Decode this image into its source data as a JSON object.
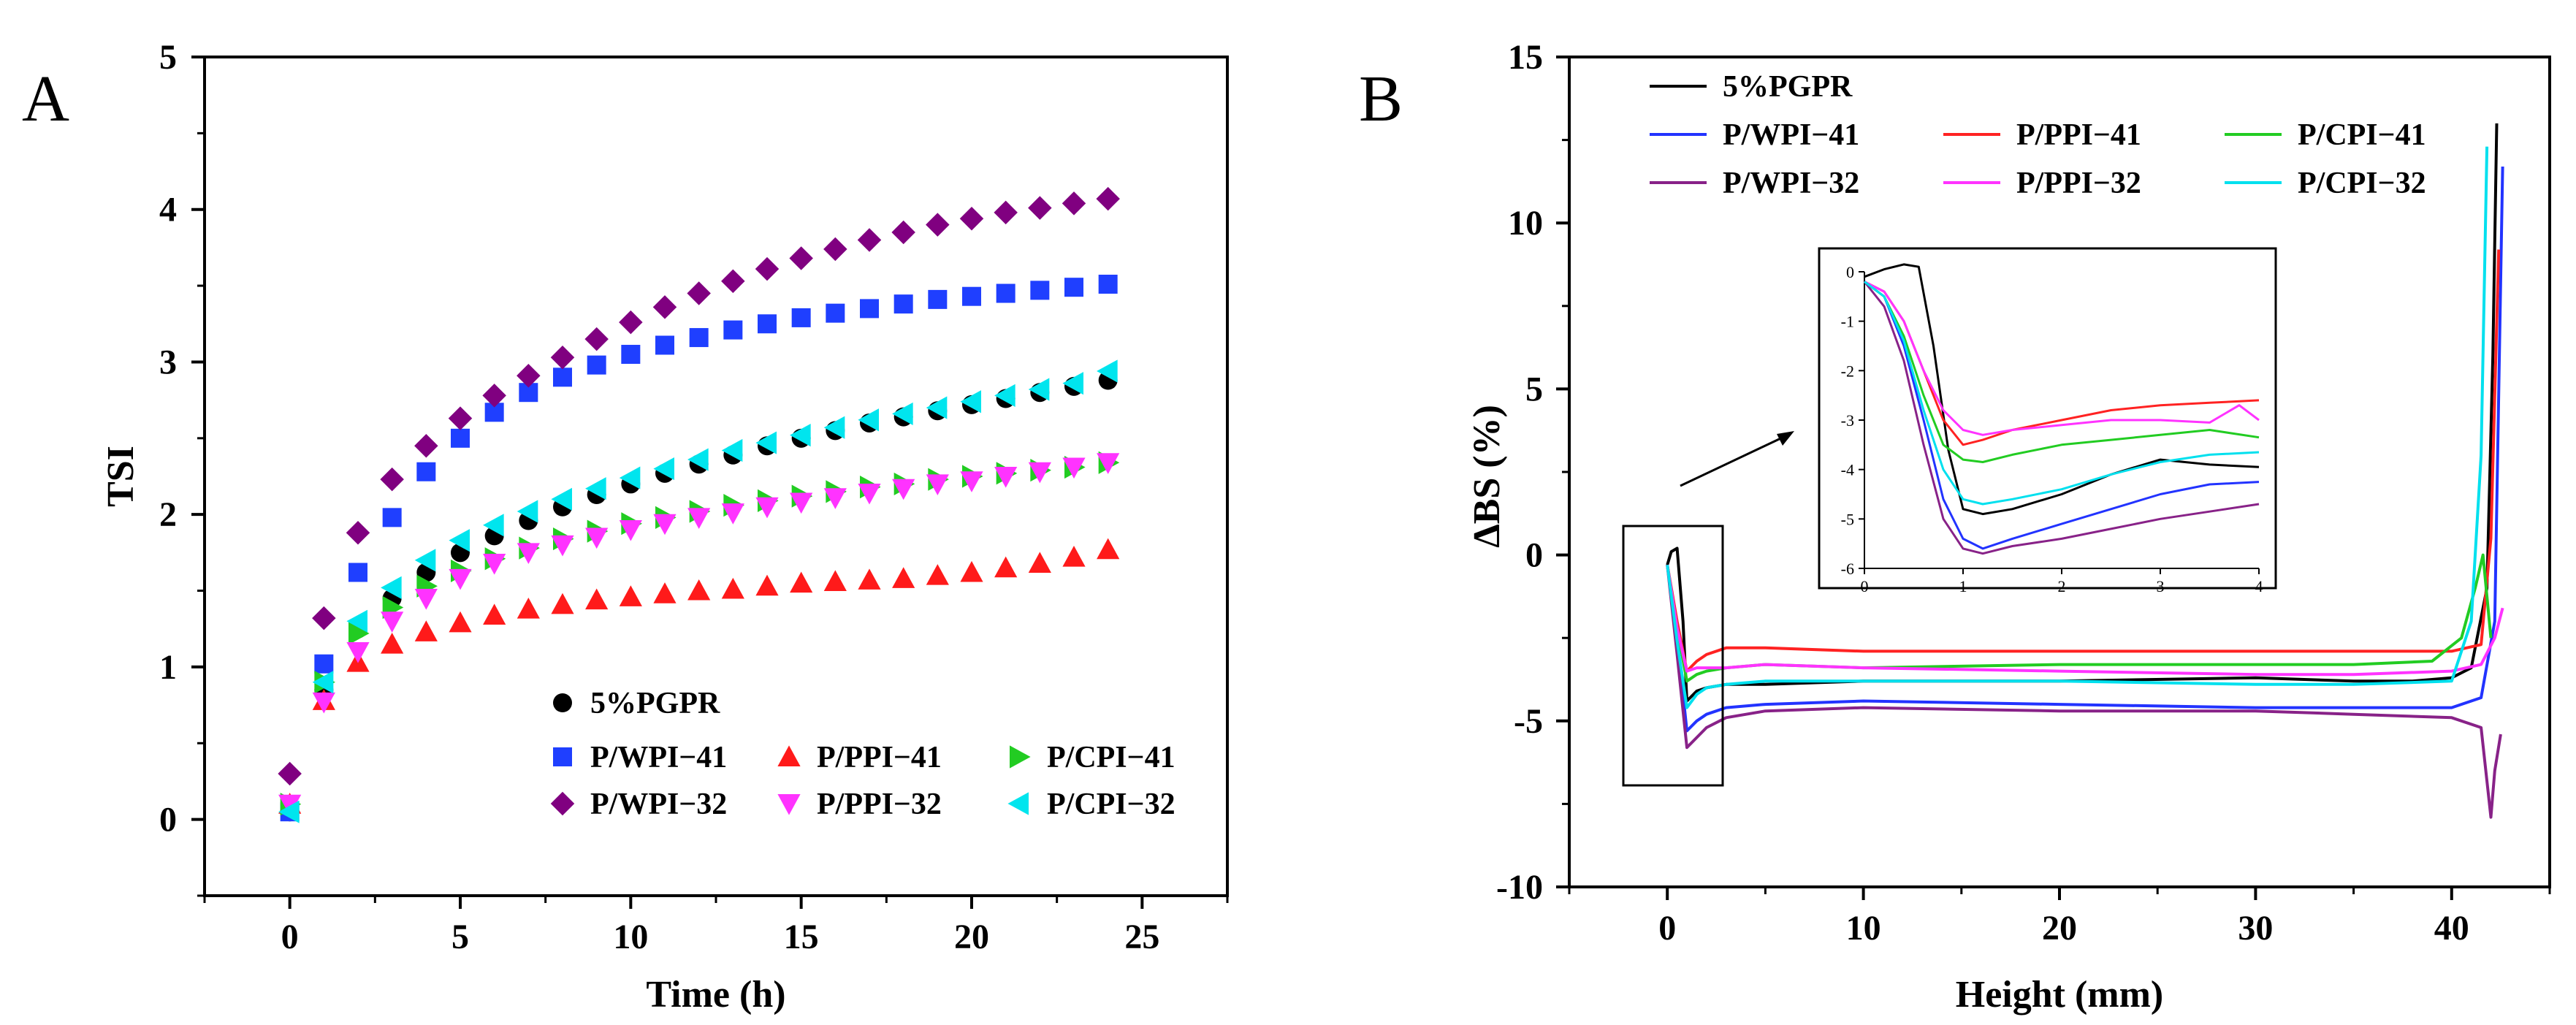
{
  "chart_data": [
    {
      "type": "scatter",
      "panel_label": "A",
      "xlabel": "Time (h)",
      "ylabel": "TSI",
      "xlim": [
        -2.5,
        27.5
      ],
      "ylim": [
        -0.5,
        5
      ],
      "xticks": [
        "0",
        "5",
        "10",
        "15",
        "20",
        "25"
      ],
      "yticks": [
        "0",
        "1",
        "2",
        "3",
        "4",
        "5"
      ],
      "legend_position": "bottom-right",
      "x": [
        0,
        1,
        2,
        3,
        4,
        5,
        6,
        7,
        8,
        9,
        10,
        11,
        12,
        13,
        14,
        15,
        16,
        17,
        18,
        19,
        20,
        21,
        22,
        23,
        24
      ],
      "series": [
        {
          "name": "5%PGPR",
          "color": "#000000",
          "marker": "circle",
          "values": [
            0.05,
            0.85,
            1.25,
            1.45,
            1.62,
            1.75,
            1.86,
            1.96,
            2.05,
            2.13,
            2.2,
            2.27,
            2.33,
            2.39,
            2.45,
            2.5,
            2.55,
            2.6,
            2.64,
            2.68,
            2.72,
            2.76,
            2.8,
            2.84,
            2.88
          ]
        },
        {
          "name": "P/WPI−41",
          "color": "#1f3fff",
          "marker": "square",
          "values": [
            0.05,
            1.02,
            1.62,
            1.98,
            2.28,
            2.5,
            2.67,
            2.8,
            2.9,
            2.98,
            3.05,
            3.11,
            3.16,
            3.21,
            3.25,
            3.29,
            3.32,
            3.35,
            3.38,
            3.41,
            3.43,
            3.45,
            3.47,
            3.49,
            3.51
          ]
        },
        {
          "name": "P/PPI−41",
          "color": "#ff1a1a",
          "marker": "triangle-up",
          "values": [
            0.1,
            0.78,
            1.03,
            1.15,
            1.23,
            1.29,
            1.34,
            1.38,
            1.41,
            1.44,
            1.46,
            1.48,
            1.5,
            1.51,
            1.53,
            1.55,
            1.56,
            1.57,
            1.58,
            1.6,
            1.62,
            1.65,
            1.68,
            1.72,
            1.77
          ]
        },
        {
          "name": "P/CPI−41",
          "color": "#22cc22",
          "marker": "triangle-right",
          "values": [
            0.1,
            0.9,
            1.22,
            1.39,
            1.53,
            1.63,
            1.71,
            1.78,
            1.84,
            1.89,
            1.94,
            1.98,
            2.02,
            2.06,
            2.09,
            2.12,
            2.15,
            2.18,
            2.2,
            2.23,
            2.25,
            2.27,
            2.29,
            2.31,
            2.34
          ]
        },
        {
          "name": "P/WPI−32",
          "color": "#800080",
          "marker": "diamond",
          "values": [
            0.3,
            1.32,
            1.88,
            2.23,
            2.45,
            2.63,
            2.78,
            2.91,
            3.03,
            3.15,
            3.26,
            3.36,
            3.45,
            3.53,
            3.61,
            3.68,
            3.74,
            3.8,
            3.85,
            3.9,
            3.94,
            3.98,
            4.01,
            4.04,
            4.07
          ]
        },
        {
          "name": "P/PPI−32",
          "color": "#ff33ff",
          "marker": "triangle-down",
          "values": [
            0.1,
            0.77,
            1.1,
            1.3,
            1.45,
            1.58,
            1.68,
            1.75,
            1.8,
            1.85,
            1.9,
            1.94,
            1.98,
            2.01,
            2.05,
            2.08,
            2.11,
            2.14,
            2.17,
            2.2,
            2.22,
            2.25,
            2.28,
            2.31,
            2.34
          ]
        },
        {
          "name": "P/CPI−32",
          "color": "#00e5ee",
          "marker": "triangle-left",
          "values": [
            0.05,
            0.9,
            1.3,
            1.52,
            1.7,
            1.83,
            1.93,
            2.02,
            2.1,
            2.17,
            2.24,
            2.3,
            2.36,
            2.42,
            2.47,
            2.52,
            2.57,
            2.62,
            2.66,
            2.7,
            2.74,
            2.78,
            2.82,
            2.86,
            2.94
          ]
        }
      ]
    },
    {
      "type": "line",
      "panel_label": "B",
      "xlabel": "Height (mm)",
      "ylabel": "ΔBS (%)",
      "xlim": [
        -5,
        45
      ],
      "ylim": [
        -10,
        15
      ],
      "xticks": [
        "0",
        "10",
        "20",
        "30",
        "40"
      ],
      "yticks": [
        "-10",
        "-5",
        "0",
        "5",
        "10",
        "15"
      ],
      "legend_position": "top-left",
      "series": [
        {
          "name": "5%PGPR",
          "color": "#000000",
          "x": [
            0,
            0.2,
            0.5,
            0.8,
            1,
            1.5,
            2,
            3,
            5,
            10,
            20,
            30,
            35,
            38,
            40,
            41,
            41.8,
            42.1,
            42.3
          ],
          "y": [
            -0.3,
            0.1,
            0.2,
            -2.0,
            -4.4,
            -4.1,
            -4.0,
            -3.9,
            -3.9,
            -3.8,
            -3.8,
            -3.7,
            -3.8,
            -3.8,
            -3.7,
            -3.4,
            -1.0,
            6.0,
            13.0
          ]
        },
        {
          "name": "P/WPI−41",
          "color": "#2233ff",
          "x": [
            0,
            0.5,
            1,
            1.5,
            2,
            3,
            5,
            10,
            20,
            30,
            35,
            40,
            41.5,
            42.2,
            42.6
          ],
          "y": [
            -0.3,
            -2.5,
            -5.3,
            -5.0,
            -4.8,
            -4.6,
            -4.5,
            -4.4,
            -4.5,
            -4.6,
            -4.6,
            -4.6,
            -4.3,
            -2.0,
            11.7
          ]
        },
        {
          "name": "P/PPI−41",
          "color": "#ff2222",
          "x": [
            0,
            0.5,
            1,
            1.5,
            2,
            3,
            5,
            10,
            20,
            30,
            35,
            40,
            41.5,
            42.0,
            42.4
          ],
          "y": [
            -0.3,
            -2.0,
            -3.5,
            -3.2,
            -3.0,
            -2.8,
            -2.8,
            -2.9,
            -2.9,
            -2.9,
            -2.9,
            -2.9,
            -2.7,
            0.5,
            9.2
          ]
        },
        {
          "name": "P/CPI−41",
          "color": "#22cc22",
          "x": [
            0,
            0.5,
            1,
            1.5,
            2,
            3,
            5,
            10,
            20,
            30,
            35,
            39,
            40.5,
            41.2,
            41.6,
            42.0
          ],
          "y": [
            -0.3,
            -2.2,
            -3.8,
            -3.6,
            -3.5,
            -3.4,
            -3.3,
            -3.4,
            -3.3,
            -3.3,
            -3.3,
            -3.2,
            -2.5,
            -1.0,
            0.0,
            -2.5
          ]
        },
        {
          "name": "P/WPI−32",
          "color": "#882288",
          "x": [
            0,
            0.5,
            1,
            1.5,
            2,
            3,
            5,
            10,
            20,
            30,
            35,
            40,
            41.5,
            42.0,
            42.2,
            42.5
          ],
          "y": [
            -0.3,
            -3.0,
            -5.8,
            -5.5,
            -5.2,
            -4.9,
            -4.7,
            -4.6,
            -4.7,
            -4.7,
            -4.8,
            -4.9,
            -5.2,
            -7.9,
            -6.5,
            -5.4
          ]
        },
        {
          "name": "P/PPI−32",
          "color": "#ff33ff",
          "x": [
            0,
            0.5,
            1,
            1.5,
            2,
            3,
            5,
            10,
            20,
            30,
            35,
            40,
            41.5,
            42.2,
            42.6
          ],
          "y": [
            -0.3,
            -2.2,
            -3.5,
            -3.4,
            -3.4,
            -3.4,
            -3.3,
            -3.4,
            -3.5,
            -3.6,
            -3.6,
            -3.5,
            -3.3,
            -2.5,
            -1.6
          ]
        },
        {
          "name": "P/CPI−32",
          "color": "#00e0ee",
          "x": [
            0,
            0.5,
            1,
            1.5,
            2,
            3,
            5,
            10,
            20,
            30,
            35,
            40,
            41.0,
            41.5,
            41.8
          ],
          "y": [
            -0.3,
            -2.6,
            -4.6,
            -4.2,
            -4.0,
            -3.9,
            -3.8,
            -3.8,
            -3.8,
            -3.9,
            -3.9,
            -3.8,
            -2.0,
            3.0,
            12.3
          ]
        }
      ],
      "inset": {
        "xlim": [
          0,
          4
        ],
        "ylim": [
          -6,
          0
        ],
        "xticks": [
          "0",
          "1",
          "2",
          "3",
          "4"
        ],
        "yticks": [
          "0",
          "-1",
          "-2",
          "-3",
          "-4",
          "-5",
          "-6"
        ],
        "series": [
          {
            "name": "5%PGPR",
            "color": "#000000",
            "x": [
              0,
              0.2,
              0.4,
              0.55,
              0.7,
              0.85,
              1.0,
              1.2,
              1.5,
              2.0,
              2.5,
              3.0,
              3.5,
              4.0
            ],
            "y": [
              -0.1,
              0.05,
              0.15,
              0.1,
              -1.5,
              -3.6,
              -4.8,
              -4.9,
              -4.8,
              -4.5,
              -4.1,
              -3.8,
              -3.9,
              -3.95
            ]
          },
          {
            "name": "P/WPI−41",
            "color": "#2233ff",
            "x": [
              0,
              0.2,
              0.4,
              0.6,
              0.8,
              1.0,
              1.2,
              1.5,
              2.0,
              2.5,
              3.0,
              3.5,
              4.0
            ],
            "y": [
              -0.2,
              -0.5,
              -1.5,
              -3.0,
              -4.6,
              -5.4,
              -5.6,
              -5.4,
              -5.1,
              -4.8,
              -4.5,
              -4.3,
              -4.25
            ]
          },
          {
            "name": "P/PPI−41",
            "color": "#ff2222",
            "x": [
              0,
              0.2,
              0.4,
              0.6,
              0.8,
              1.0,
              1.2,
              1.5,
              2.0,
              2.5,
              3.0,
              3.5,
              4.0
            ],
            "y": [
              -0.2,
              -0.4,
              -1.0,
              -2.0,
              -3.0,
              -3.5,
              -3.4,
              -3.2,
              -3.0,
              -2.8,
              -2.7,
              -2.65,
              -2.6
            ]
          },
          {
            "name": "P/CPI−41",
            "color": "#22cc22",
            "x": [
              0,
              0.2,
              0.4,
              0.6,
              0.8,
              1.0,
              1.2,
              1.5,
              2.0,
              2.5,
              3.0,
              3.5,
              4.0
            ],
            "y": [
              -0.2,
              -0.5,
              -1.3,
              -2.5,
              -3.5,
              -3.8,
              -3.85,
              -3.7,
              -3.5,
              -3.4,
              -3.3,
              -3.2,
              -3.35
            ]
          },
          {
            "name": "P/WPI−32",
            "color": "#882288",
            "x": [
              0,
              0.2,
              0.4,
              0.6,
              0.8,
              1.0,
              1.2,
              1.5,
              2.0,
              2.5,
              3.0,
              3.5,
              4.0
            ],
            "y": [
              -0.2,
              -0.7,
              -1.8,
              -3.5,
              -5.0,
              -5.6,
              -5.7,
              -5.55,
              -5.4,
              -5.2,
              -5.0,
              -4.85,
              -4.7
            ]
          },
          {
            "name": "P/PPI−32",
            "color": "#ff33ff",
            "x": [
              0,
              0.2,
              0.4,
              0.6,
              0.8,
              1.0,
              1.2,
              1.5,
              2.0,
              2.5,
              3.0,
              3.5,
              3.8,
              4.0
            ],
            "y": [
              -0.2,
              -0.4,
              -1.0,
              -2.0,
              -2.8,
              -3.2,
              -3.3,
              -3.2,
              -3.1,
              -3.0,
              -3.0,
              -3.05,
              -2.7,
              -3.0
            ]
          },
          {
            "name": "P/CPI−32",
            "color": "#00e0ee",
            "x": [
              0,
              0.2,
              0.4,
              0.6,
              0.8,
              1.0,
              1.2,
              1.5,
              2.0,
              2.5,
              3.0,
              3.5,
              4.0
            ],
            "y": [
              -0.2,
              -0.5,
              -1.4,
              -2.8,
              -4.0,
              -4.6,
              -4.7,
              -4.6,
              -4.4,
              -4.1,
              -3.85,
              -3.7,
              -3.65
            ]
          }
        ]
      }
    }
  ]
}
